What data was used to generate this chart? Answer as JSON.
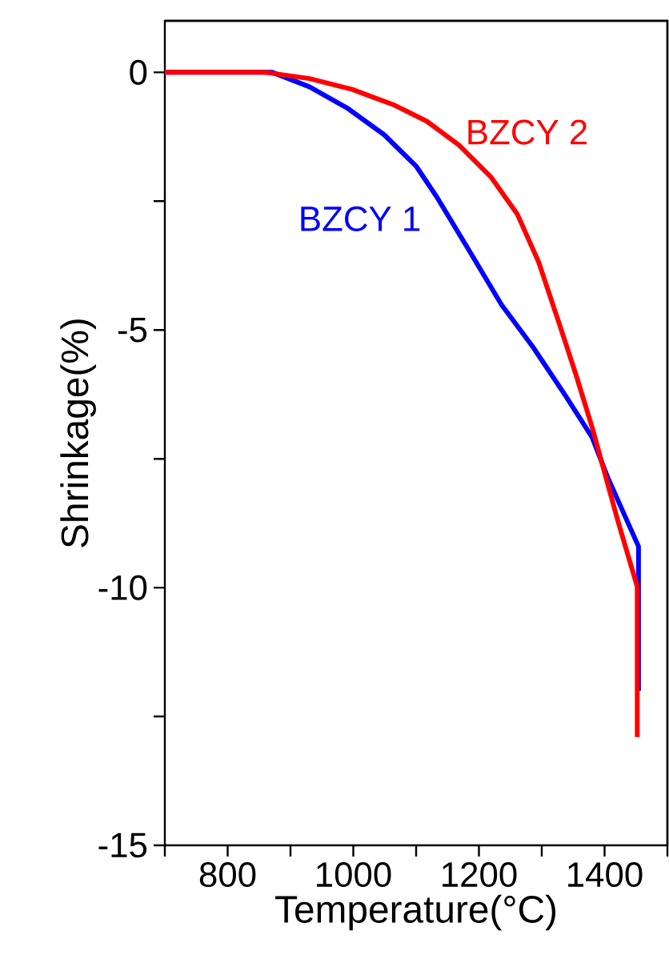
{
  "chart_data": {
    "type": "line",
    "xlabel": "Temperature(°C)",
    "ylabel": "Shrinkage(%)",
    "xlim": [
      700,
      1500
    ],
    "ylim": [
      -15,
      1
    ],
    "xticks": [
      {
        "value": 700,
        "label": null
      },
      800,
      {
        "value": 900,
        "label": null
      },
      1000,
      {
        "value": 1100,
        "label": null
      },
      1200,
      {
        "value": 1300,
        "label": null
      },
      1400,
      {
        "value": 1500,
        "label": null
      }
    ],
    "yticks": [
      -15,
      {
        "value": -12.5,
        "label": null
      },
      -10,
      {
        "value": -7.5,
        "label": null
      },
      -5,
      {
        "value": -2.5,
        "label": null
      },
      0
    ],
    "grid": false,
    "legend": false,
    "marker": "none",
    "line_style": "solid",
    "series": [
      {
        "name": "BZCY 1",
        "color": "#0000ff",
        "x": [
          700,
          871,
          930,
          990,
          1049,
          1100,
          1134,
          1185,
          1236,
          1286,
          1337,
          1380,
          1405,
          1454,
          1454
        ],
        "values": [
          0,
          0,
          -0.28,
          -0.69,
          -1.21,
          -1.82,
          -2.44,
          -3.47,
          -4.51,
          -5.33,
          -6.26,
          -7.08,
          -7.86,
          -9.2,
          -12
        ]
      },
      {
        "name": "BZCY 2",
        "color": "#ff0000",
        "x": [
          700,
          860,
          930,
          998,
          1066,
          1117,
          1168,
          1219,
          1261,
          1295,
          1329,
          1354,
          1380,
          1422,
          1452,
          1452
        ],
        "values": [
          0,
          0,
          -0.12,
          -0.33,
          -0.64,
          -0.95,
          -1.41,
          -2.03,
          -2.75,
          -3.68,
          -4.92,
          -5.85,
          -6.88,
          -8.74,
          -9.98,
          -12.9
        ]
      }
    ]
  }
}
